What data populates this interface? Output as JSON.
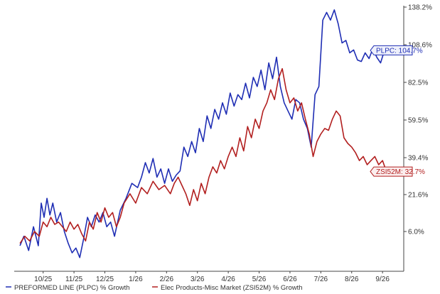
{
  "chart_data": {
    "type": "line",
    "x_labels": [
      "10/25",
      "11/25",
      "12/25",
      "1/26",
      "2/26",
      "3/26",
      "4/26",
      "5/26",
      "6/26",
      "7/26",
      "8/26",
      "9/26"
    ],
    "y_ticks": [
      "6.0%",
      "21.6%",
      "39.4%",
      "59.5%",
      "82.5%",
      "108.6%",
      "138.2%"
    ],
    "y_values": [
      6.0,
      21.6,
      39.4,
      59.5,
      82.5,
      108.6,
      138.2
    ],
    "series": [
      {
        "name": "PREFORMED LINE (PLPC) % Growth",
        "callout": "PLPC: 104.7%",
        "color": "#1f2eb4",
        "values": [
          [
            0,
            0
          ],
          [
            0.2,
            4
          ],
          [
            0.45,
            -2
          ],
          [
            0.7,
            8
          ],
          [
            0.95,
            0
          ],
          [
            1.1,
            18
          ],
          [
            1.25,
            12
          ],
          [
            1.4,
            20
          ],
          [
            1.55,
            13
          ],
          [
            1.7,
            18
          ],
          [
            1.9,
            10
          ],
          [
            2.1,
            14
          ],
          [
            2.3,
            6
          ],
          [
            2.5,
            1
          ],
          [
            2.7,
            -3
          ],
          [
            2.9,
            -1
          ],
          [
            3.1,
            -5
          ],
          [
            3.3,
            3
          ],
          [
            3.5,
            12
          ],
          [
            3.7,
            8
          ],
          [
            3.9,
            13
          ],
          [
            4.1,
            10
          ],
          [
            4.3,
            14
          ],
          [
            4.5,
            8
          ],
          [
            4.7,
            10
          ],
          [
            4.9,
            4
          ],
          [
            5.2,
            15
          ],
          [
            5.5,
            20
          ],
          [
            5.8,
            27
          ],
          [
            6.1,
            25
          ],
          [
            6.3,
            30
          ],
          [
            6.5,
            37
          ],
          [
            6.7,
            32
          ],
          [
            6.9,
            39
          ],
          [
            7.1,
            30
          ],
          [
            7.3,
            34
          ],
          [
            7.5,
            27
          ],
          [
            7.7,
            34
          ],
          [
            7.9,
            28
          ],
          [
            8.1,
            31
          ],
          [
            8.3,
            33
          ],
          [
            8.5,
            45
          ],
          [
            8.7,
            40
          ],
          [
            8.9,
            48
          ],
          [
            9.1,
            42
          ],
          [
            9.3,
            55
          ],
          [
            9.5,
            48
          ],
          [
            9.7,
            62
          ],
          [
            9.9,
            55
          ],
          [
            10.1,
            66
          ],
          [
            10.3,
            60
          ],
          [
            10.5,
            70
          ],
          [
            10.7,
            63
          ],
          [
            10.9,
            76
          ],
          [
            11.1,
            68
          ],
          [
            11.3,
            75
          ],
          [
            11.5,
            72
          ],
          [
            11.7,
            82
          ],
          [
            11.9,
            73
          ],
          [
            12.1,
            86
          ],
          [
            12.3,
            80
          ],
          [
            12.5,
            91
          ],
          [
            12.7,
            78
          ],
          [
            12.9,
            96
          ],
          [
            13.1,
            85
          ],
          [
            13.3,
            100
          ],
          [
            13.5,
            80
          ],
          [
            13.7,
            70
          ],
          [
            13.9,
            65
          ],
          [
            14.1,
            60
          ],
          [
            14.3,
            72
          ],
          [
            14.5,
            70
          ],
          [
            14.7,
            60
          ],
          [
            14.9,
            55
          ],
          [
            15.1,
            45
          ],
          [
            15.3,
            75
          ],
          [
            15.5,
            80
          ],
          [
            15.7,
            128
          ],
          [
            15.9,
            134
          ],
          [
            16.1,
            128
          ],
          [
            16.3,
            136
          ],
          [
            16.5,
            125
          ],
          [
            16.7,
            110
          ],
          [
            16.9,
            112
          ],
          [
            17.1,
            103
          ],
          [
            17.3,
            105
          ],
          [
            17.5,
            98
          ],
          [
            17.7,
            97
          ],
          [
            17.9,
            103
          ],
          [
            18.1,
            99
          ],
          [
            18.3,
            106
          ],
          [
            18.5,
            100
          ],
          [
            18.7,
            96
          ],
          [
            18.9,
            104.7
          ]
        ]
      },
      {
        "name": "Elec Products-Misc Market (ZSI52M) % Growth",
        "callout": "ZSI52M: 32.7%",
        "color": "#b21f1f",
        "values": [
          [
            0,
            1
          ],
          [
            0.25,
            4
          ],
          [
            0.5,
            2
          ],
          [
            0.75,
            6
          ],
          [
            1.0,
            4
          ],
          [
            1.2,
            10
          ],
          [
            1.4,
            8
          ],
          [
            1.6,
            12
          ],
          [
            1.8,
            9
          ],
          [
            2.0,
            10
          ],
          [
            2.2,
            8
          ],
          [
            2.4,
            6
          ],
          [
            2.6,
            10
          ],
          [
            2.8,
            7
          ],
          [
            3.0,
            9
          ],
          [
            3.2,
            5
          ],
          [
            3.4,
            2
          ],
          [
            3.6,
            10
          ],
          [
            3.8,
            7
          ],
          [
            4.0,
            14
          ],
          [
            4.2,
            10
          ],
          [
            4.4,
            16
          ],
          [
            4.6,
            12
          ],
          [
            4.8,
            14
          ],
          [
            5.0,
            8
          ],
          [
            5.2,
            12
          ],
          [
            5.4,
            18
          ],
          [
            5.7,
            22
          ],
          [
            6.0,
            18
          ],
          [
            6.3,
            25
          ],
          [
            6.6,
            22
          ],
          [
            6.9,
            28
          ],
          [
            7.2,
            24
          ],
          [
            7.5,
            26
          ],
          [
            7.8,
            22
          ],
          [
            8.0,
            27
          ],
          [
            8.2,
            30
          ],
          [
            8.4,
            26
          ],
          [
            8.6,
            22
          ],
          [
            8.8,
            17
          ],
          [
            9.0,
            24
          ],
          [
            9.2,
            19
          ],
          [
            9.4,
            27
          ],
          [
            9.6,
            22
          ],
          [
            9.8,
            30
          ],
          [
            10.0,
            35
          ],
          [
            10.2,
            32
          ],
          [
            10.4,
            38
          ],
          [
            10.6,
            34
          ],
          [
            10.8,
            40
          ],
          [
            11.0,
            45
          ],
          [
            11.2,
            40
          ],
          [
            11.4,
            50
          ],
          [
            11.6,
            43
          ],
          [
            11.8,
            56
          ],
          [
            12.0,
            50
          ],
          [
            12.2,
            60
          ],
          [
            12.4,
            55
          ],
          [
            12.6,
            65
          ],
          [
            12.8,
            70
          ],
          [
            13.0,
            78
          ],
          [
            13.2,
            72
          ],
          [
            13.4,
            85
          ],
          [
            13.6,
            92
          ],
          [
            13.8,
            78
          ],
          [
            14.0,
            70
          ],
          [
            14.2,
            73
          ],
          [
            14.4,
            65
          ],
          [
            14.6,
            70
          ],
          [
            14.8,
            60
          ],
          [
            15.0,
            52
          ],
          [
            15.2,
            40
          ],
          [
            15.4,
            48
          ],
          [
            15.6,
            52
          ],
          [
            15.8,
            55
          ],
          [
            16.0,
            54
          ],
          [
            16.2,
            60
          ],
          [
            16.4,
            65
          ],
          [
            16.6,
            62
          ],
          [
            16.8,
            50
          ],
          [
            17.0,
            47
          ],
          [
            17.2,
            45
          ],
          [
            17.4,
            42
          ],
          [
            17.6,
            38
          ],
          [
            17.8,
            40
          ],
          [
            18.0,
            36
          ],
          [
            18.2,
            38
          ],
          [
            18.4,
            40
          ],
          [
            18.6,
            36
          ],
          [
            18.8,
            38
          ],
          [
            19.0,
            32.7
          ]
        ]
      }
    ]
  },
  "legend": {
    "plpc_label": "PREFORMED LINE (PLPC) % Growth",
    "zsi_label": "Elec Products-Misc Market (ZSI52M) % Growth"
  },
  "callouts": {
    "plpc": "PLPC: 104.7%",
    "zsi": "ZSI52M: 32.7%"
  },
  "colors": {
    "plpc": "#1f2eb4",
    "zsi": "#b21f1f",
    "axis": "#444444",
    "grid": "#dddddd"
  }
}
